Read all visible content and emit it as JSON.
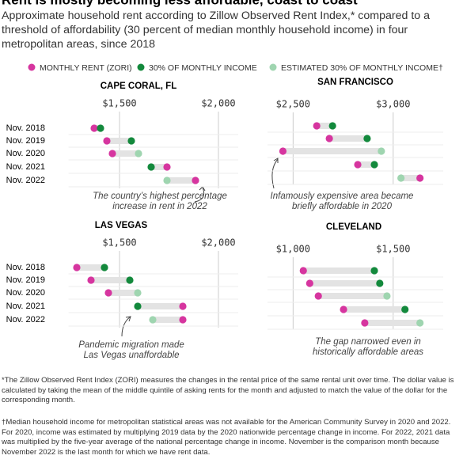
{
  "title": "Rent is mostly becoming less affordable, coast to coast",
  "subtitle": [
    "Approximate household rent according to Zillow Observed Rent Index,* compared to a",
    "threshold of affordability (30 percent of median monthly household income) in four",
    "metropolitan areas, since 2018"
  ],
  "legend": [
    {
      "label": "MONTHLY RENT (ZORI)",
      "color": "#d6359f"
    },
    {
      "label": "30% OF MONTHLY INCOME",
      "color": "#13893c"
    },
    {
      "label": "ESTIMATED 30% OF MONTHLY INCOME†",
      "color": "#9fd5b0"
    }
  ],
  "chart_data": [
    {
      "type": "dumbbell",
      "title": "CAPE CORAL, FL",
      "categories": [
        "Nov. 2018",
        "Nov. 2019",
        "Nov. 2020",
        "Nov. 2021",
        "Nov. 2022"
      ],
      "series": [
        {
          "values": [
            1372,
            1436,
            1464,
            1740,
            1884
          ]
        },
        {
          "values": [
            1404,
            1560,
            null,
            1660,
            null
          ]
        },
        {
          "values": [
            null,
            null,
            1596,
            null,
            1740
          ]
        }
      ],
      "xlim": [
        1250,
        2100
      ],
      "xticks": [
        {
          "value": 1500,
          "label": "$1,500"
        },
        {
          "value": 2000,
          "label": "$2,000"
        }
      ],
      "annotation": [
        "The country’s highest percentage",
        "increase in rent in 2022"
      ]
    },
    {
      "type": "dumbbell",
      "title": "SAN FRANCISCO",
      "series": [
        {
          "values": [
            2618,
            2681,
            2449,
            2823,
            3134
          ]
        },
        {
          "values": [
            2697,
            2870,
            null,
            2906,
            null
          ]
        },
        {
          "values": [
            null,
            null,
            2941,
            null,
            3039
          ]
        }
      ],
      "xlim": [
        2380,
        3250
      ],
      "xticks": [
        {
          "value": 2500,
          "label": "$2,500"
        },
        {
          "value": 3000,
          "label": "$3,000"
        }
      ],
      "annotation": [
        "Infamously expensive area became",
        "briefly affordable in 2020"
      ]
    },
    {
      "type": "dumbbell",
      "title": "LAS VEGAS",
      "categories": [
        "Nov. 2018",
        "Nov. 2019",
        "Nov. 2020",
        "Nov. 2021",
        "Nov. 2022"
      ],
      "series": [
        {
          "values": [
            1284,
            1356,
            1444,
            1820,
            1820
          ]
        },
        {
          "values": [
            1424,
            1552,
            null,
            1592,
            null
          ]
        },
        {
          "values": [
            null,
            null,
            1592,
            null,
            1668
          ]
        }
      ],
      "xlim": [
        1250,
        2100
      ],
      "xticks": [
        {
          "value": 1500,
          "label": "$1,500"
        },
        {
          "value": 2000,
          "label": "$2,000"
        }
      ],
      "annotation": [
        "Pandemic migration made",
        "Las Vegas unaffordable"
      ]
    },
    {
      "type": "dumbbell",
      "title": "CLEVELAND",
      "series": [
        {
          "values": [
            1051,
            1083,
            1126,
            1252,
            1358
          ]
        },
        {
          "values": [
            1406,
            1433,
            null,
            1559,
            null
          ]
        },
        {
          "values": [
            null,
            null,
            1469,
            null,
            1634
          ]
        }
      ],
      "xlim": [
        880,
        1750
      ],
      "xticks": [
        {
          "value": 1000,
          "label": "$1,000"
        },
        {
          "value": 1500,
          "label": "$1,500"
        }
      ],
      "annotation": [
        "The gap narrowed even in",
        "historically affordable areas"
      ]
    }
  ],
  "notes": [
    "*The Zillow Observed Rent Index (ZORI) measures the changes in the rental price of the same rental unit over time. The dollar value is calculated by taking the mean of the middle quintile of asking rents for the month and adjusted to match the value of the dollar for the corresponding month.",
    "†Median household income for metropolitan statistical areas was not available for the American Community Survey in 2020 and 2022. For 2020, income was estimated by multiplying 2019 data by the 2020 nationwide percentage change in income. For 2022, 2021 data was multiplied by the five-year average of the national percentage change in income. November is the comparison month because November 2022 is the last month for which we have rent data."
  ]
}
